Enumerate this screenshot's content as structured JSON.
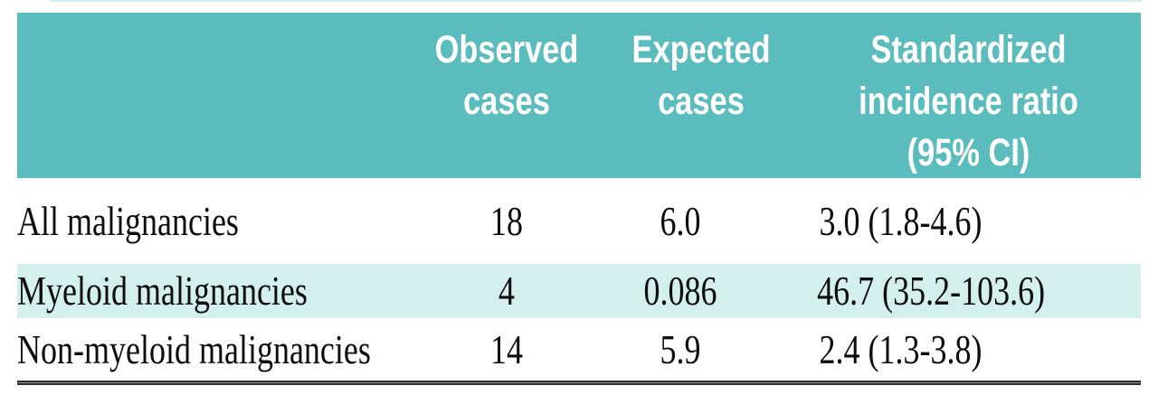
{
  "table": {
    "headers": {
      "label": "",
      "observed": [
        "Observed",
        "cases"
      ],
      "expected": [
        "Expected",
        "cases"
      ],
      "sir": [
        "Standardized",
        "incidence ratio",
        "(95% CI)"
      ]
    },
    "rows": [
      {
        "label": "All malignancies",
        "observed": "18",
        "expected": "6.0",
        "sir": "3.0 (1.8-4.6)",
        "highlighted": false
      },
      {
        "label": "Myeloid malignancies",
        "observed": "4",
        "expected": "0.086",
        "sir": "46.7 (35.2-103.6)",
        "highlighted": true
      },
      {
        "label": "Non-myeloid malignancies",
        "observed": "14",
        "expected": "5.9",
        "sir": "2.4 (1.3-3.8)",
        "highlighted": false
      }
    ],
    "colors": {
      "header_bg": "#5bbcbd",
      "highlight_row_bg": "#d3efee",
      "header_text": "#ffffff",
      "body_text": "#0d0d0d",
      "bottom_rule": "#2f2f2f",
      "top_sliver": "#d8ecea"
    }
  }
}
